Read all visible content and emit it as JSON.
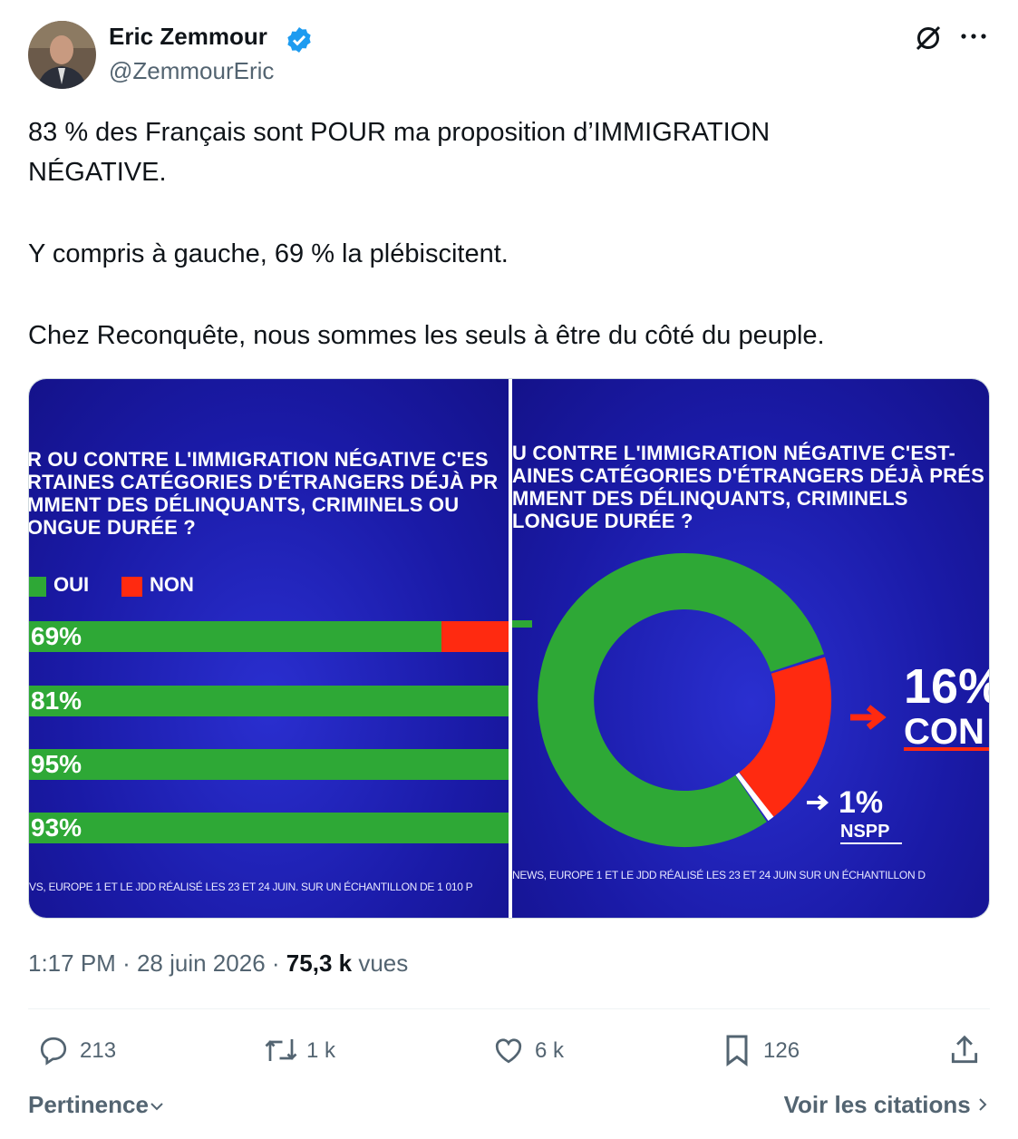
{
  "author": {
    "name": "Eric Zemmour",
    "handle": "@ZemmourEric"
  },
  "tweet": {
    "paragraphs": [
      "83 % des Français sont POUR ma proposition d’IMMIGRATION NÉGATIVE.",
      "Y compris à gauche, 69 % la plébiscitent.",
      "Chez Reconquête, nous sommes les seuls à être du côté du peuple."
    ]
  },
  "media": {
    "left": {
      "question": [
        "R OU CONTRE L'IMMIGRATION NÉGATIVE C'ES",
        "RTAINES CATÉGORIES D'ÉTRANGERS DÉJÀ PR",
        "MMENT DES DÉLINQUANTS, CRIMINELS OU",
        "ONGUE DURÉE ?"
      ],
      "legend": [
        "OUI",
        "NON"
      ],
      "bars": [
        "69%",
        "81%",
        "95%",
        "93%"
      ],
      "source": "VS, EUROPE 1 ET LE JDD RÉALISÉ LES 23 ET 24 JUIN. SUR UN ÉCHANTILLON DE 1 010 P"
    },
    "right": {
      "question": [
        "U CONTRE L'IMMIGRATION NÉGATIVE C'EST-",
        "AINES CATÉGORIES D'ÉTRANGERS DÉJÀ PRÉS",
        "MMENT DES DÉLINQUANTS, CRIMINELS",
        "LONGUE DURÉE ?"
      ],
      "contre_value": "16%",
      "contre_label": "CON",
      "nspp_value": "1%",
      "nspp_label": "NSPP",
      "source": "NEWS, EUROPE 1 ET LE JDD RÉALISÉ LES 23 ET 24 JUIN SUR UN ÉCHANTILLON D"
    }
  },
  "meta": {
    "time": "1:17 PM",
    "separator": "·",
    "date": "28 juin 2026",
    "views": "75,3 k",
    "views_label": "vues"
  },
  "actions": {
    "replies": "213",
    "reposts": "1 k",
    "likes": "6 k",
    "bookmarks": "126"
  },
  "footer": {
    "sort": "Pertinence",
    "quotes": "Voir les citations"
  }
}
